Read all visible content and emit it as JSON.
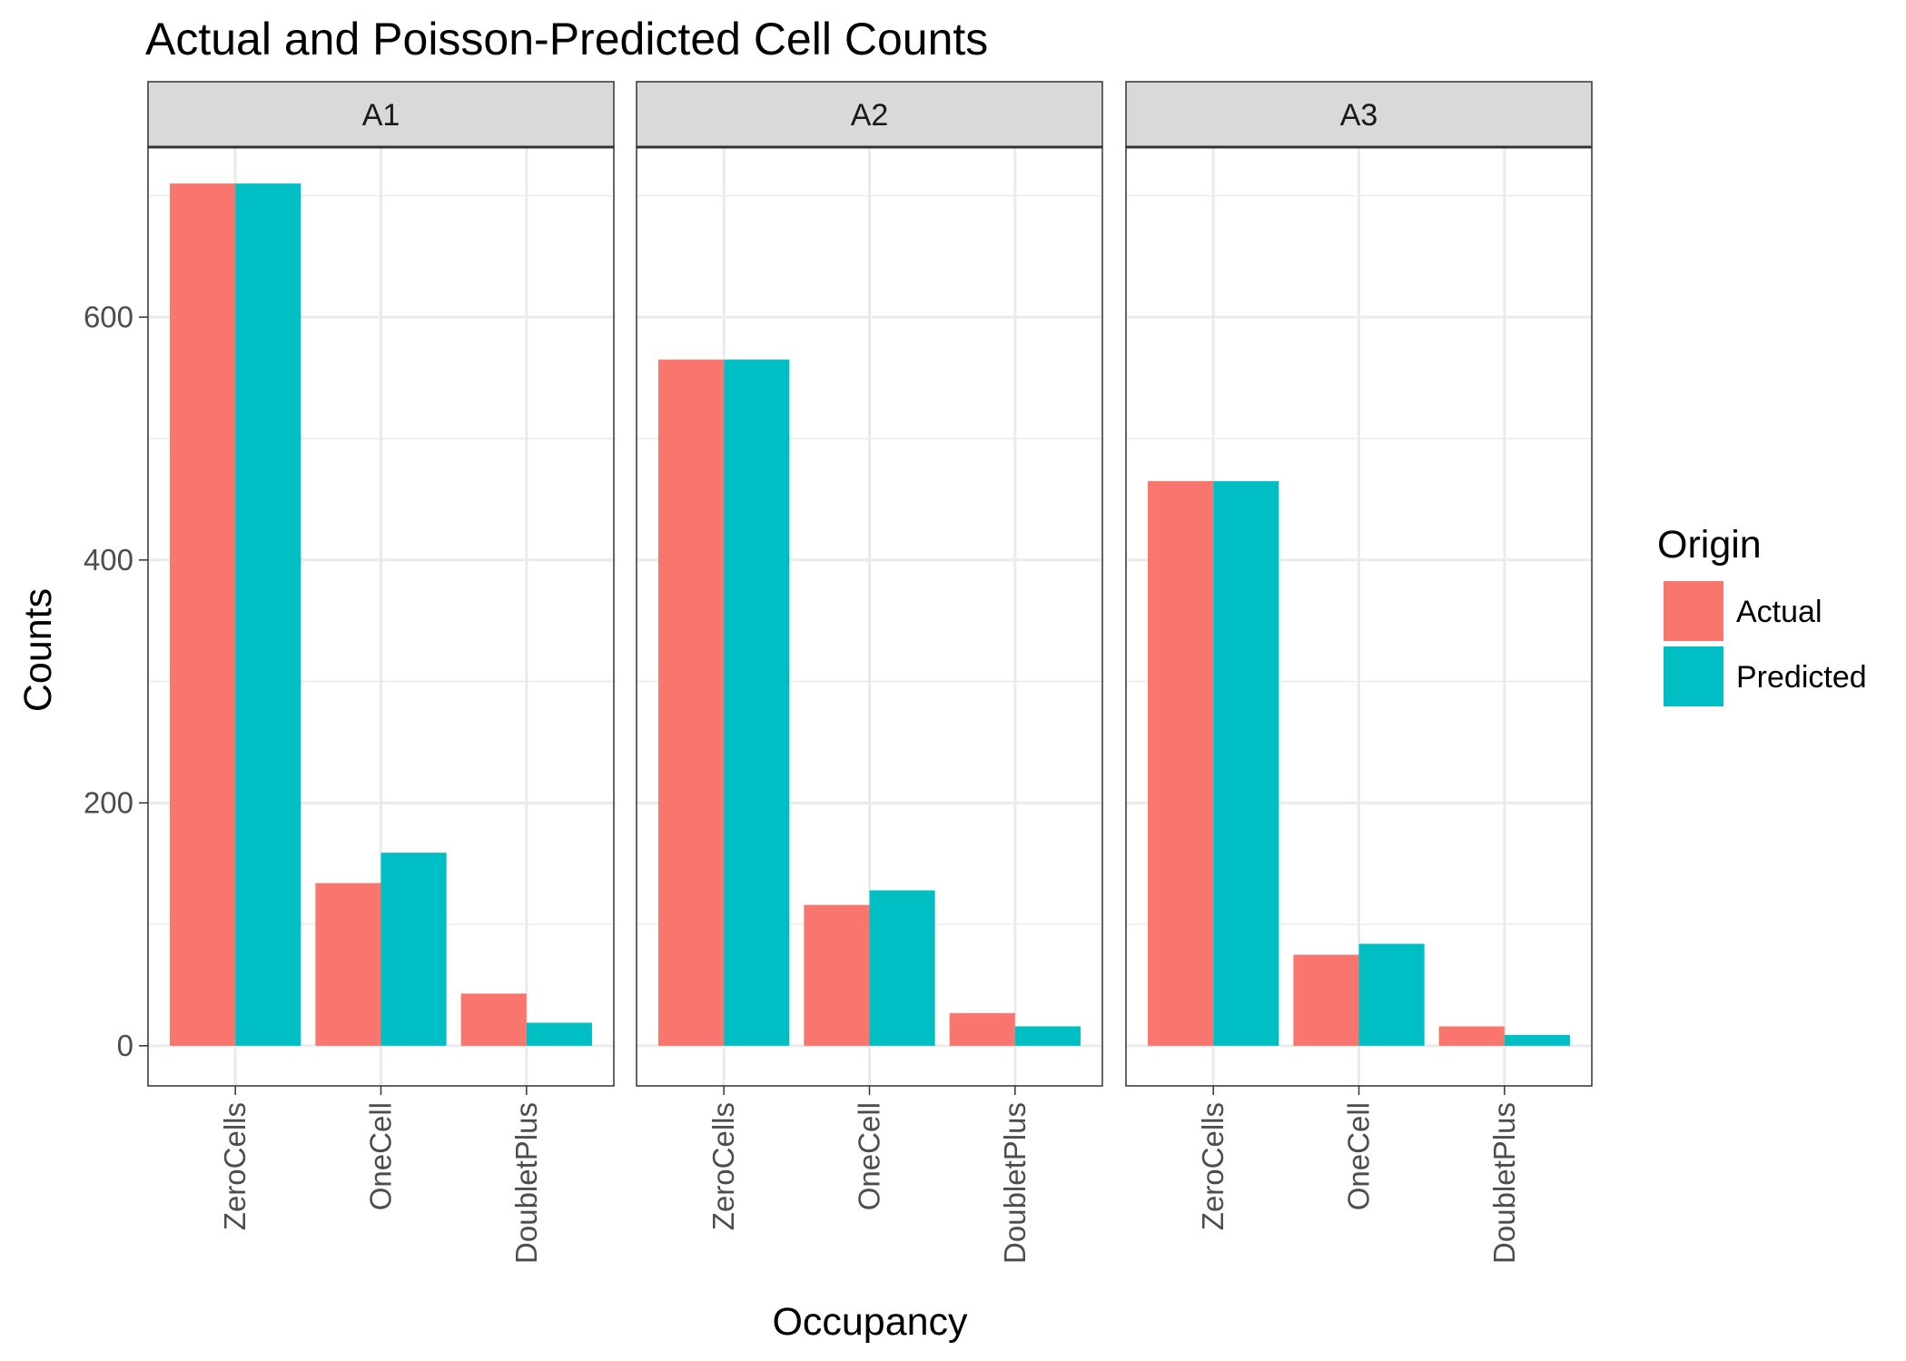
{
  "chart_data": {
    "type": "bar",
    "title": "Actual and Poisson-Predicted Cell Counts",
    "xlabel": "Occupancy",
    "ylabel": "Counts",
    "ylim": [
      -33,
      740
    ],
    "yticks": [
      0,
      200,
      400,
      600
    ],
    "grid": true,
    "legend": {
      "title": "Origin",
      "position": "right",
      "entries": [
        {
          "label": "Actual",
          "color": "#F8766D"
        },
        {
          "label": "Predicted",
          "color": "#00BFC4"
        }
      ]
    },
    "categories": [
      "ZeroCells",
      "OneCell",
      "DoubletPlus"
    ],
    "panels": [
      {
        "label": "A1",
        "series": [
          {
            "name": "Actual",
            "values": [
              710,
              134,
              43
            ]
          },
          {
            "name": "Predicted",
            "values": [
              710,
              159,
              19
            ]
          }
        ]
      },
      {
        "label": "A2",
        "series": [
          {
            "name": "Actual",
            "values": [
              565,
              116,
              27
            ]
          },
          {
            "name": "Predicted",
            "values": [
              565,
              128,
              16
            ]
          }
        ]
      },
      {
        "label": "A3",
        "series": [
          {
            "name": "Actual",
            "values": [
              465,
              75,
              16
            ]
          },
          {
            "name": "Predicted",
            "values": [
              465,
              84,
              9
            ]
          }
        ]
      }
    ]
  }
}
